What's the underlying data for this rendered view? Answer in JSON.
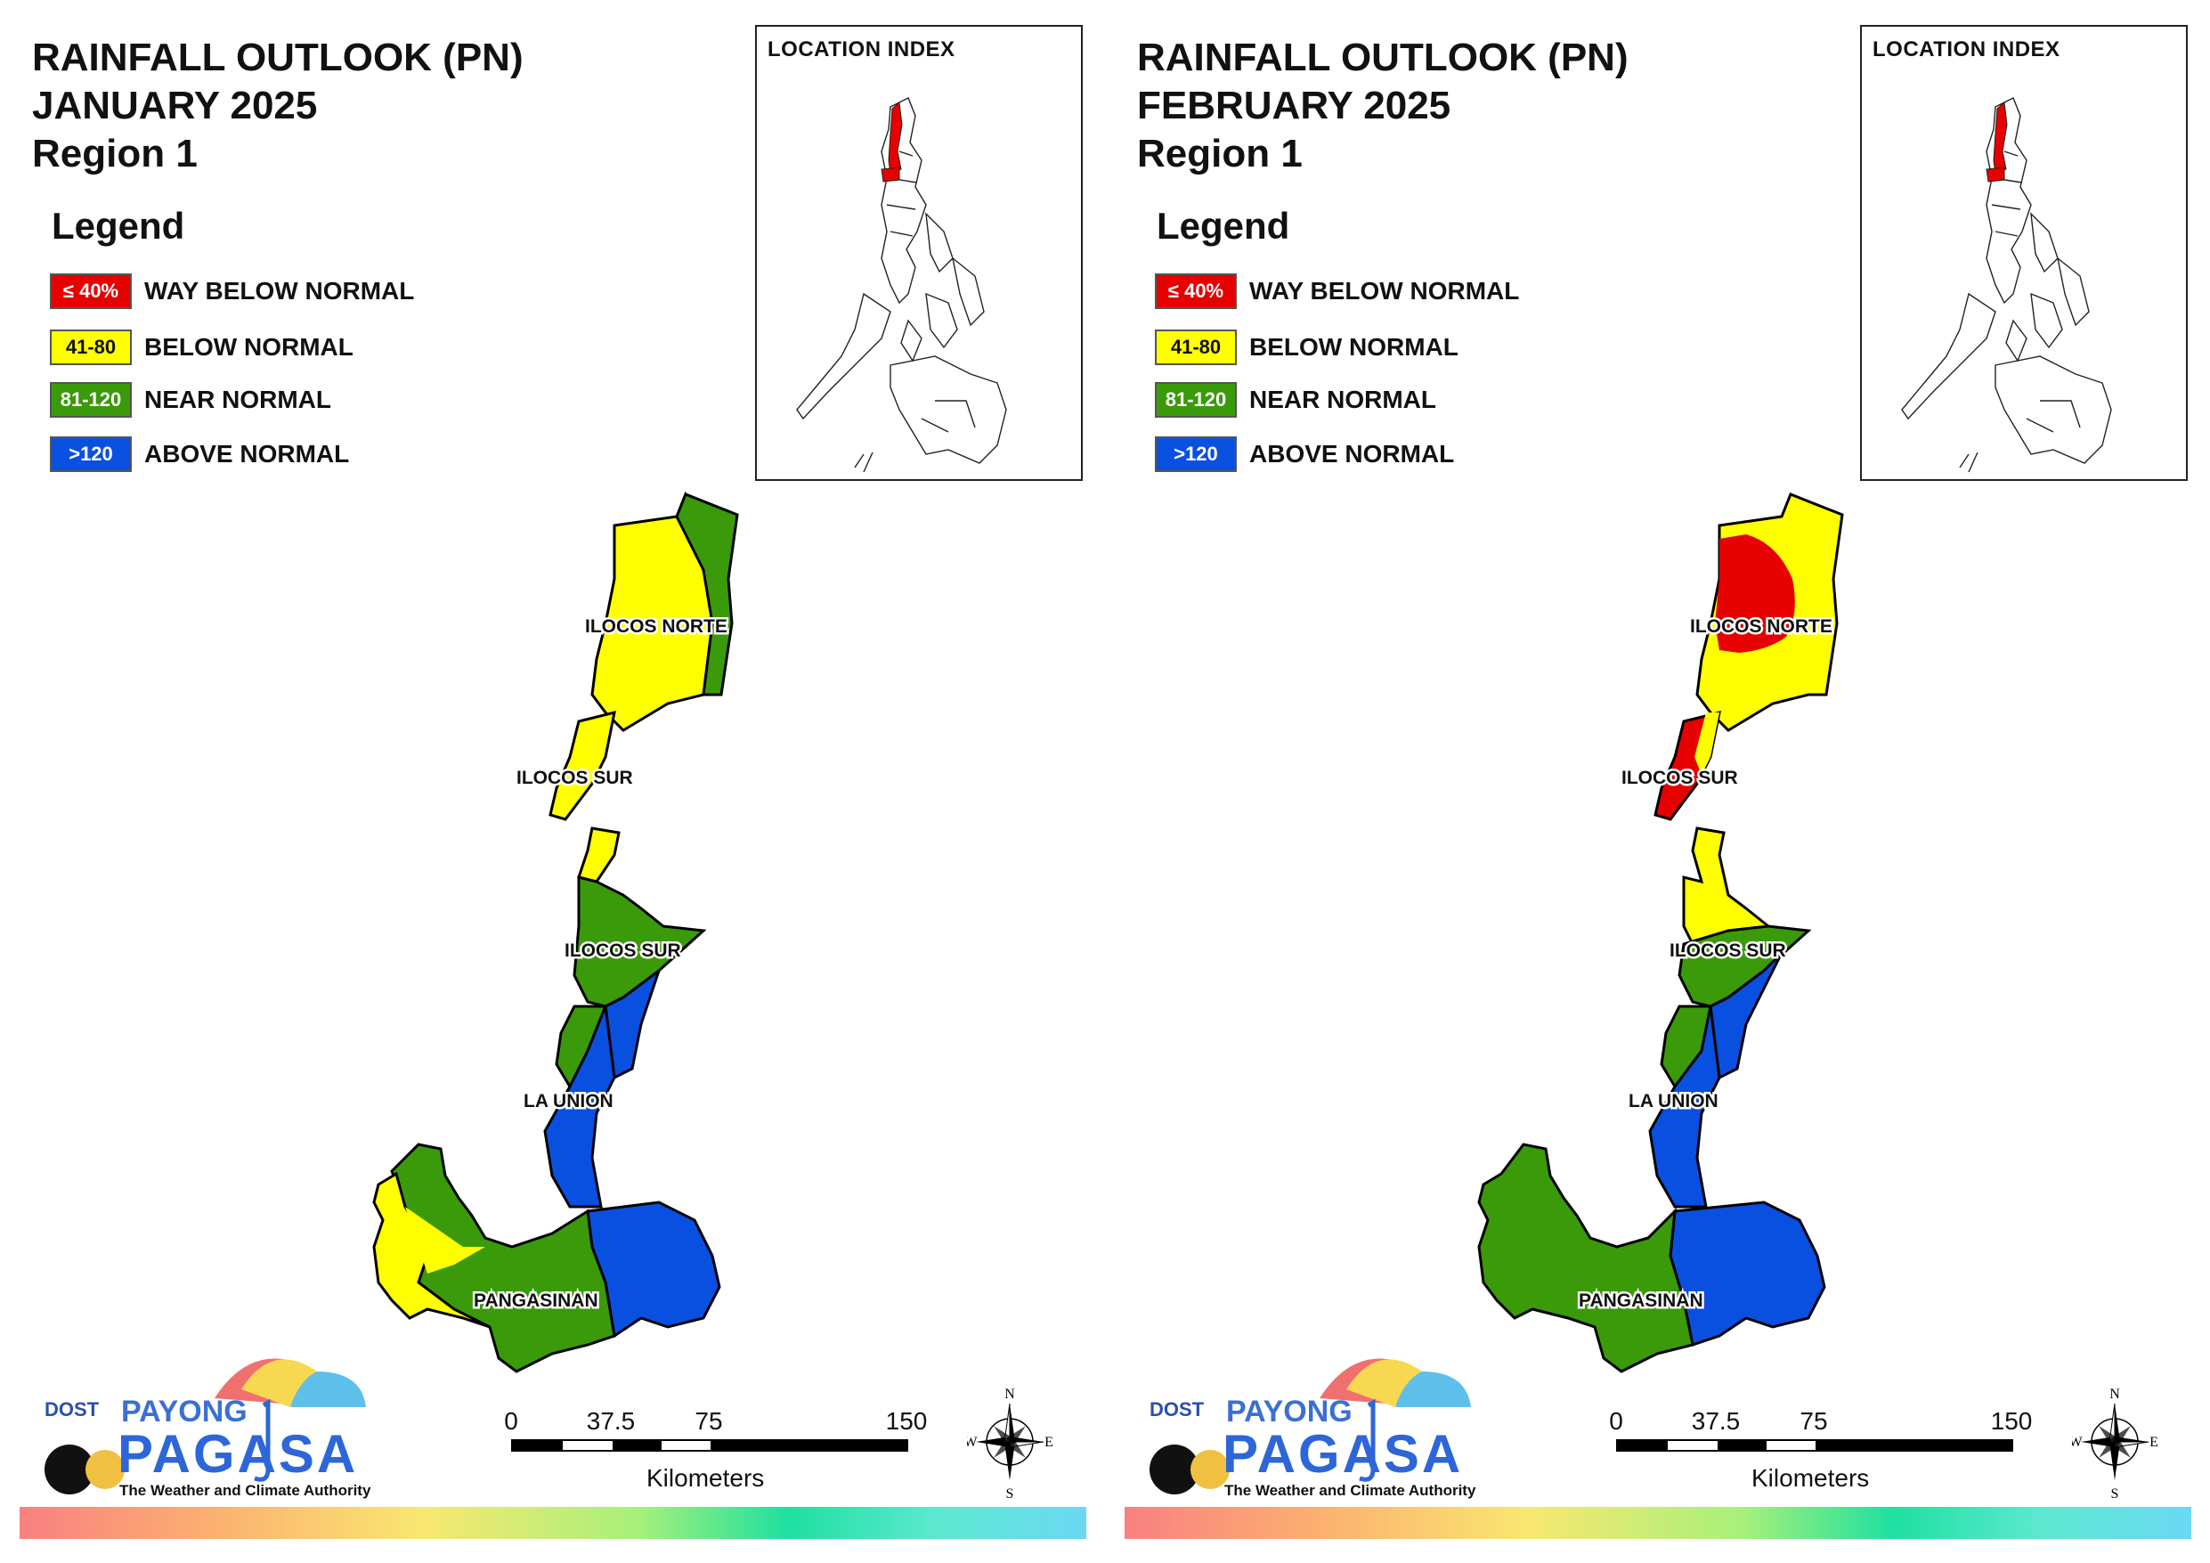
{
  "panels": [
    {
      "title_line1": "RAINFALL OUTLOOK (PN)",
      "title_line2": "JANUARY 2025",
      "title_line3": "Region 1",
      "legend_title": "Legend",
      "legend": [
        {
          "code": "≤ 40%",
          "label": "WAY BELOW NORMAL",
          "color": "#e60000"
        },
        {
          "code": "41-80",
          "label": "BELOW NORMAL",
          "color": "#ffff00"
        },
        {
          "code": "81-120",
          "label": "NEAR NORMAL",
          "color": "#3a9a0a"
        },
        {
          "code": ">120",
          "label": "ABOVE NORMAL",
          "color": "#0a50e0"
        }
      ],
      "location_index_title": "LOCATION INDEX",
      "provinces": [
        "ILOCOS NORTE",
        "ILOCOS SUR",
        "ILOCOS SUR",
        "LA UNION",
        "PANGASINAN"
      ],
      "scale": {
        "ticks": [
          "0",
          "37.5",
          "75",
          "150"
        ],
        "unit": "Kilometers"
      },
      "compass": {
        "n": "N",
        "s": "S",
        "e": "E",
        "w": "W"
      },
      "logo": {
        "dost": "DOST",
        "payong": "PAYONG",
        "pagasa": "PAGASA",
        "tagline": "The Weather and Climate Authority"
      }
    },
    {
      "title_line1": "RAINFALL OUTLOOK (PN)",
      "title_line2": "FEBRUARY 2025",
      "title_line3": "Region 1",
      "legend_title": "Legend",
      "legend": [
        {
          "code": "≤ 40%",
          "label": "WAY BELOW NORMAL",
          "color": "#e60000"
        },
        {
          "code": "41-80",
          "label": "BELOW NORMAL",
          "color": "#ffff00"
        },
        {
          "code": "81-120",
          "label": "NEAR NORMAL",
          "color": "#3a9a0a"
        },
        {
          "code": ">120",
          "label": "ABOVE NORMAL",
          "color": "#0a50e0"
        }
      ],
      "location_index_title": "LOCATION INDEX",
      "provinces": [
        "ILOCOS NORTE",
        "ILOCOS SUR",
        "ILOCOS SUR",
        "LA UNION",
        "PANGASINAN"
      ],
      "scale": {
        "ticks": [
          "0",
          "37.5",
          "75",
          "150"
        ],
        "unit": "Kilometers"
      },
      "compass": {
        "n": "N",
        "s": "S",
        "e": "E",
        "w": "W"
      },
      "logo": {
        "dost": "DOST",
        "payong": "PAYONG",
        "pagasa": "PAGASA",
        "tagline": "The Weather and Climate Authority"
      }
    }
  ]
}
